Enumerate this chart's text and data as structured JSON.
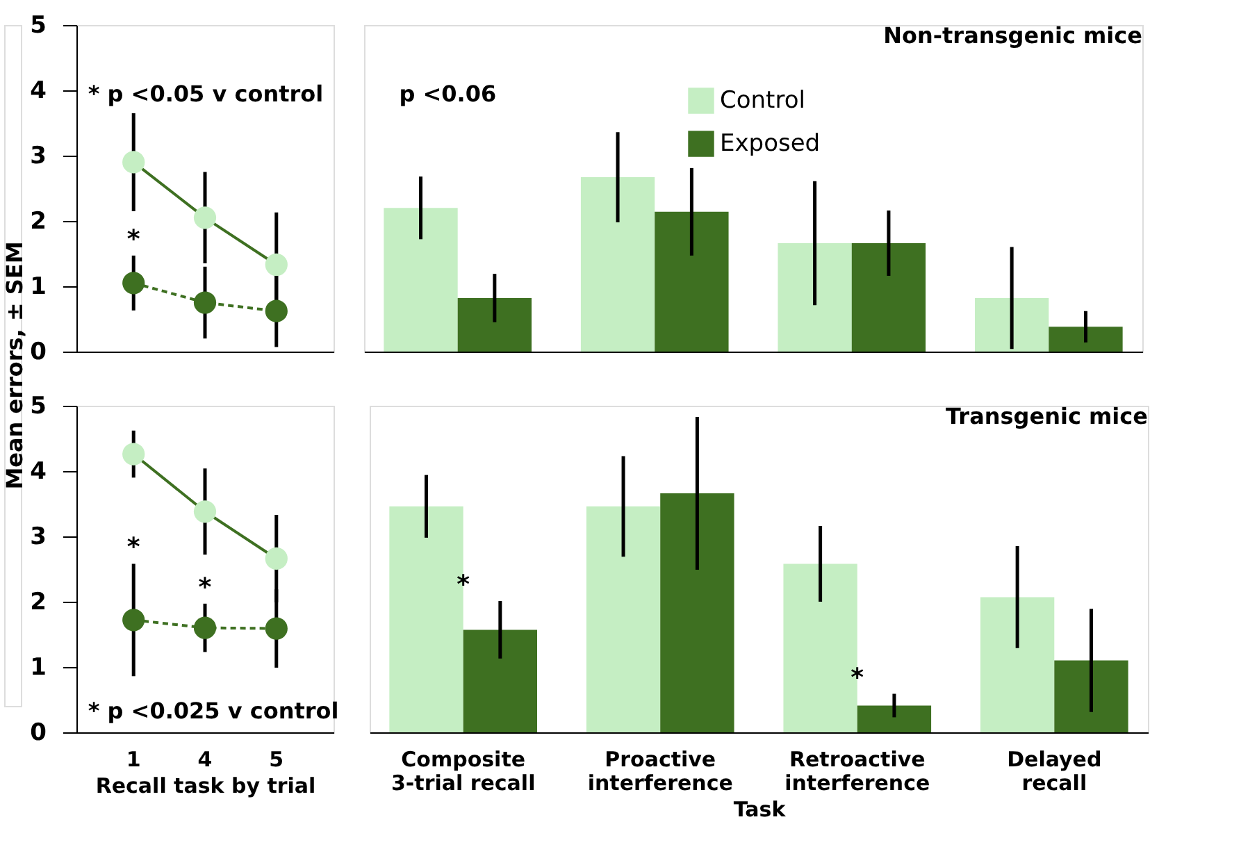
{
  "chart_data": [
    {
      "type": "line",
      "ylabel": "Mean errors, ± SEM",
      "categories": [
        "1",
        "4",
        "5"
      ],
      "ylim": [
        0,
        5
      ],
      "yticks": [
        0,
        1,
        2,
        3,
        4,
        5
      ],
      "tick_labels": "y",
      "grid": false,
      "marker": "circle",
      "series": [
        {
          "color": "#c5eec3",
          "line_style": "solid",
          "values": [
            2.9,
            2.05,
            1.33
          ],
          "errors": [
            0.75,
            0.7,
            0.8
          ]
        },
        {
          "color": "#3e7021",
          "line_style": "dashed",
          "values": [
            1.05,
            0.75,
            0.62
          ],
          "errors": [
            0.42,
            0.55,
            0.55
          ]
        }
      ],
      "annotations": [
        "* p <0.05 v control",
        {
          "text": "*",
          "x": "1",
          "y": 1.47
        }
      ]
    },
    {
      "type": "bar",
      "title": "Non-transgenic mice",
      "categories": [
        "Composite\n3-trial recall",
        "Proactive\ninterference",
        "Retroactive\ninterference",
        "Delayed\nrecall"
      ],
      "ylim": [
        0,
        5
      ],
      "yticks": [
        0,
        1,
        2,
        3,
        4,
        5
      ],
      "tick_labels": false,
      "grid": false,
      "legend": "top right",
      "series": [
        {
          "name": "Control",
          "color": "#c5eec3",
          "values": [
            2.2,
            2.67,
            1.66,
            0.82
          ],
          "errors": [
            0.48,
            0.69,
            0.95,
            0.78
          ]
        },
        {
          "name": "Exposed",
          "color": "#3e7021",
          "values": [
            0.82,
            2.14,
            1.66,
            0.38
          ],
          "errors": [
            0.37,
            0.67,
            0.5,
            0.24
          ]
        }
      ],
      "annotations": [
        "p <0.06"
      ]
    },
    {
      "type": "line",
      "xlabel": "Recall task by trial",
      "categories": [
        "1",
        "4",
        "5"
      ],
      "ylim": [
        0,
        5
      ],
      "yticks": [
        0,
        1,
        2,
        3,
        4,
        5
      ],
      "grid": false,
      "marker": "circle",
      "series": [
        {
          "color": "#c5eec3",
          "line_style": "solid",
          "values": [
            4.26,
            3.38,
            2.66
          ],
          "errors": [
            0.36,
            0.66,
            0.67
          ]
        },
        {
          "color": "#3e7021",
          "line_style": "dashed",
          "values": [
            1.72,
            1.6,
            1.59
          ],
          "errors": [
            0.86,
            0.37,
            0.6
          ]
        }
      ],
      "annotations": [
        "* p <0.025 v control",
        {
          "text": "*",
          "x": "1",
          "y": 2.58
        },
        {
          "text": "*",
          "x": "4",
          "y": 1.97
        }
      ]
    },
    {
      "type": "bar",
      "title": "Transgenic mice",
      "xlabel": "Task",
      "categories": [
        "Composite\n3-trial recall",
        "Proactive\ninterference",
        "Retroactive\ninterference",
        "Delayed\nrecall"
      ],
      "ylim": [
        0,
        5
      ],
      "yticks": [
        0,
        1,
        2,
        3,
        4,
        5
      ],
      "tick_labels": "x",
      "grid": false,
      "legend": false,
      "series": [
        {
          "name": "Control",
          "color": "#c5eec3",
          "values": [
            3.46,
            3.46,
            2.58,
            2.07
          ],
          "errors": [
            0.48,
            0.77,
            0.58,
            0.78
          ]
        },
        {
          "name": "Exposed",
          "color": "#3e7021",
          "values": [
            1.57,
            3.66,
            0.41,
            1.1
          ],
          "errors": [
            0.44,
            1.17,
            0.18,
            0.79
          ]
        }
      ],
      "annotations": [
        {
          "text": "*",
          "x": "Composite\n3-trial recall",
          "y": 2.01
        },
        {
          "text": "*",
          "x": "Retroactive\ninterference",
          "y": 0.59
        }
      ]
    }
  ]
}
